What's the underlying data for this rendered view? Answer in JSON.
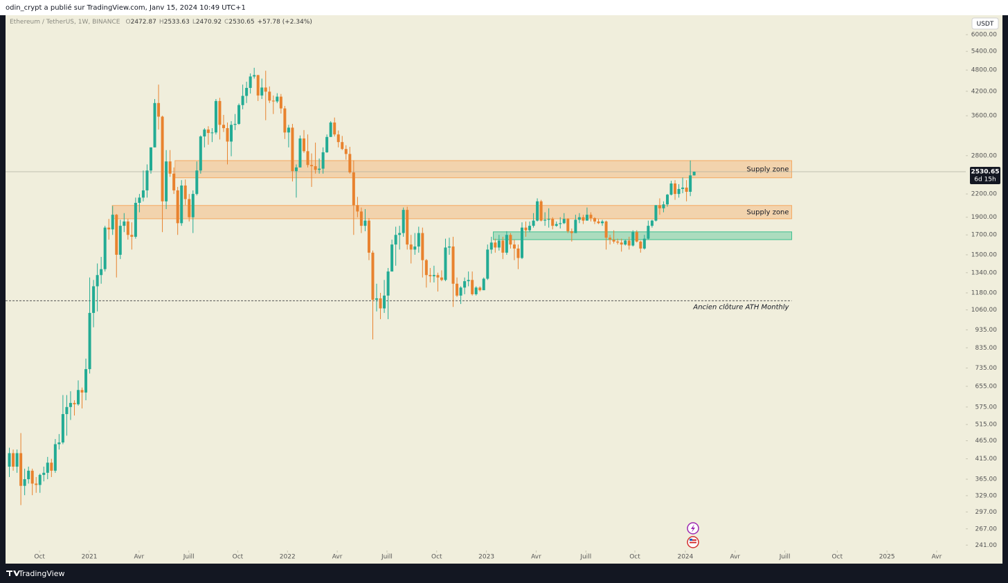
{
  "header": "odin_crypt a publié sur TradingView.com, Janv 15, 2024 10:49 UTC+1",
  "brand": "TradingView",
  "chart_data": {
    "type": "candlestick",
    "symbol": "Ethereum / TetherUS, 1W, BINANCE",
    "ohlc_prefixes": [
      "O",
      "H",
      "L",
      "C"
    ],
    "change": "+57.78 (+2.34%)",
    "countdown": "6d 15h",
    "currency": "USDT",
    "log": true,
    "colors": {
      "up": "#22ab94",
      "down": "#e8822e"
    },
    "xlim": [
      -1,
      250
    ],
    "ylim": [
      233,
      6780
    ],
    "xticks": [
      {
        "value": 7.9,
        "label": "Oct"
      },
      {
        "value": 20.9,
        "label": "2021"
      },
      {
        "value": 33.9,
        "label": "Avr"
      },
      {
        "value": 46.9,
        "label": "Juill"
      },
      {
        "value": 59.7,
        "label": "Oct"
      },
      {
        "value": 72.7,
        "label": "2022"
      },
      {
        "value": 85.7,
        "label": "Avr"
      },
      {
        "value": 98.7,
        "label": "Juill"
      },
      {
        "value": 111.7,
        "label": "Oct"
      },
      {
        "value": 124.7,
        "label": "2023"
      },
      {
        "value": 137.7,
        "label": "Avr"
      },
      {
        "value": 150.7,
        "label": "Juill"
      },
      {
        "value": 163.5,
        "label": "Oct"
      },
      {
        "value": 176.7,
        "label": "2024"
      },
      {
        "value": 189.7,
        "label": "Avr"
      },
      {
        "value": 202.7,
        "label": "Juill"
      },
      {
        "value": 216.4,
        "label": "Oct"
      },
      {
        "value": 229.4,
        "label": "2025"
      },
      {
        "value": 242.4,
        "label": "Avr"
      }
    ],
    "yticks": [
      {
        "value": 6000,
        "label": "6000.00"
      },
      {
        "value": 5400,
        "label": "5400.00"
      },
      {
        "value": 4800,
        "label": "4800.00"
      },
      {
        "value": 4200,
        "label": "4200.00"
      },
      {
        "value": 3600,
        "label": "3600.00"
      },
      {
        "value": 2800,
        "label": "2800.00"
      },
      {
        "value": 2200,
        "label": "2200.00"
      },
      {
        "value": 1900,
        "label": "1900.00"
      },
      {
        "value": 1700,
        "label": "1700.00"
      },
      {
        "value": 1500,
        "label": "1500.00"
      },
      {
        "value": 1340,
        "label": "1340.00"
      },
      {
        "value": 1180,
        "label": "1180.00"
      },
      {
        "value": 1060,
        "label": "1060.00"
      },
      {
        "value": 935,
        "label": "935.00"
      },
      {
        "value": 835,
        "label": "835.00"
      },
      {
        "value": 735,
        "label": "735.00"
      },
      {
        "value": 655,
        "label": "655.00"
      },
      {
        "value": 575,
        "label": "575.00"
      },
      {
        "value": 515,
        "label": "515.00"
      },
      {
        "value": 465,
        "label": "465.00"
      },
      {
        "value": 415,
        "label": "415.00"
      },
      {
        "value": 365,
        "label": "365.00"
      },
      {
        "value": 329,
        "label": "329.00"
      },
      {
        "value": 297,
        "label": "297.00"
      },
      {
        "value": 267,
        "label": "267.00"
      },
      {
        "value": 241,
        "label": "241.00"
      }
    ],
    "zones": [
      {
        "label": "Supply zone",
        "y": [
          2436,
          2714
        ],
        "x": [
          43.3,
          204.5
        ],
        "color": "#f5a860"
      },
      {
        "label": "Supply zone",
        "y": [
          1882,
          2046
        ],
        "x": [
          26.9,
          204.5
        ],
        "color": "#f5a860"
      },
      {
        "y": [
          1650,
          1733
        ],
        "x": [
          126.5,
          204.5
        ],
        "color": "#3cbf8e"
      }
    ],
    "hline": {
      "label": "Ancien clôture ATH Monthly",
      "level": 1123,
      "x": [
        -1,
        204.5
      ]
    },
    "candles": [
      [
        395,
        445,
        370,
        430
      ],
      [
        430,
        440,
        385,
        395
      ],
      [
        395,
        440,
        380,
        430
      ],
      [
        430,
        488,
        310,
        350
      ],
      [
        350,
        390,
        330,
        365
      ],
      [
        365,
        395,
        355,
        385
      ],
      [
        385,
        390,
        330,
        355
      ],
      [
        355,
        370,
        335,
        352
      ],
      [
        352,
        378,
        335,
        375
      ],
      [
        375,
        395,
        360,
        380
      ],
      [
        380,
        420,
        365,
        405
      ],
      [
        405,
        415,
        370,
        385
      ],
      [
        385,
        470,
        380,
        455
      ],
      [
        455,
        485,
        440,
        460
      ],
      [
        460,
        620,
        455,
        550
      ],
      [
        550,
        620,
        480,
        575
      ],
      [
        575,
        635,
        530,
        590
      ],
      [
        590,
        600,
        545,
        585
      ],
      [
        585,
        680,
        580,
        640
      ],
      [
        640,
        650,
        570,
        630
      ],
      [
        630,
        780,
        600,
        730
      ],
      [
        730,
        1300,
        710,
        1040
      ],
      [
        1040,
        1280,
        950,
        1230
      ],
      [
        1230,
        1420,
        1050,
        1320
      ],
      [
        1320,
        1480,
        1250,
        1370
      ],
      [
        1370,
        1800,
        1350,
        1780
      ],
      [
        1780,
        1880,
        1650,
        1760
      ],
      [
        1760,
        2040,
        1700,
        1930
      ],
      [
        1930,
        1940,
        1300,
        1500
      ],
      [
        1500,
        1870,
        1460,
        1800
      ],
      [
        1800,
        1950,
        1730,
        1850
      ],
      [
        1850,
        1880,
        1650,
        1700
      ],
      [
        1700,
        1840,
        1550,
        1680
      ],
      [
        1680,
        2150,
        1660,
        2080
      ],
      [
        2080,
        2200,
        1960,
        2150
      ],
      [
        2150,
        2550,
        2100,
        2250
      ],
      [
        2250,
        2650,
        2150,
        2550
      ],
      [
        2550,
        2950,
        2500,
        2950
      ],
      [
        2950,
        4000,
        2950,
        3900
      ],
      [
        3900,
        4380,
        3300,
        3580
      ],
      [
        3580,
        3600,
        1730,
        2100
      ],
      [
        2100,
        2900,
        2000,
        2700
      ],
      [
        2700,
        2900,
        2450,
        2500
      ],
      [
        2500,
        2600,
        2200,
        2250
      ],
      [
        2250,
        2300,
        1700,
        1830
      ],
      [
        1830,
        2400,
        1800,
        2320
      ],
      [
        2320,
        2410,
        2050,
        2130
      ],
      [
        2130,
        2200,
        1850,
        1900
      ],
      [
        1900,
        2250,
        1720,
        2200
      ],
      [
        2200,
        2700,
        2180,
        2550
      ],
      [
        2550,
        3180,
        2500,
        3160
      ],
      [
        3160,
        3330,
        2950,
        3300
      ],
      [
        3300,
        3370,
        3000,
        3230
      ],
      [
        3230,
        3330,
        3050,
        3240
      ],
      [
        3240,
        4000,
        3200,
        3950
      ],
      [
        3950,
        4030,
        3100,
        3400
      ],
      [
        3400,
        3620,
        3250,
        3330
      ],
      [
        3330,
        3450,
        2650,
        3060
      ],
      [
        3060,
        3480,
        2790,
        3400
      ],
      [
        3400,
        3640,
        3290,
        3420
      ],
      [
        3420,
        3890,
        3400,
        3850
      ],
      [
        3850,
        4380,
        3750,
        4080
      ],
      [
        4080,
        4460,
        3900,
        4290
      ],
      [
        4290,
        4700,
        4140,
        4610
      ],
      [
        4610,
        4870,
        4550,
        4650
      ],
      [
        4650,
        4660,
        3950,
        4090
      ],
      [
        4090,
        4550,
        4000,
        4300
      ],
      [
        4300,
        4780,
        3500,
        4190
      ],
      [
        4190,
        4330,
        3900,
        3960
      ],
      [
        3960,
        4090,
        3640,
        3940
      ],
      [
        3940,
        4150,
        3900,
        4060
      ],
      [
        4060,
        4130,
        3650,
        3770
      ],
      [
        3770,
        3830,
        3110,
        3240
      ],
      [
        3240,
        3400,
        2950,
        3340
      ],
      [
        3340,
        3420,
        2380,
        2540
      ],
      [
        2540,
        2650,
        2150,
        2600
      ],
      [
        2600,
        3180,
        2600,
        3120
      ],
      [
        3120,
        3290,
        2850,
        2880
      ],
      [
        2880,
        3200,
        2600,
        2640
      ],
      [
        2640,
        2840,
        2300,
        2620
      ],
      [
        2620,
        3040,
        2500,
        2560
      ],
      [
        2560,
        2750,
        2500,
        2580
      ],
      [
        2580,
        2950,
        2500,
        2860
      ],
      [
        2860,
        3200,
        2850,
        3150
      ],
      [
        3150,
        3480,
        3150,
        3450
      ],
      [
        3450,
        3560,
        3160,
        3200
      ],
      [
        3200,
        3280,
        2950,
        3050
      ],
      [
        3050,
        3170,
        2900,
        2920
      ],
      [
        2920,
        2990,
        2730,
        2830
      ],
      [
        2830,
        2960,
        2500,
        2520
      ],
      [
        2520,
        2720,
        1700,
        2050
      ],
      [
        2050,
        2160,
        1900,
        1970
      ],
      [
        1970,
        2020,
        1720,
        1800
      ],
      [
        1800,
        2000,
        1740,
        1860
      ],
      [
        1860,
        1890,
        1450,
        1520
      ],
      [
        1520,
        1540,
        880,
        1130
      ],
      [
        1130,
        1250,
        1050,
        1140
      ],
      [
        1140,
        1180,
        1000,
        1070
      ],
      [
        1070,
        1280,
        1040,
        1160
      ],
      [
        1160,
        1380,
        1000,
        1350
      ],
      [
        1350,
        1650,
        1350,
        1600
      ],
      [
        1600,
        1790,
        1400,
        1700
      ],
      [
        1700,
        1800,
        1550,
        1720
      ],
      [
        1720,
        2020,
        1680,
        1990
      ],
      [
        1990,
        2030,
        1550,
        1600
      ],
      [
        1600,
        1700,
        1420,
        1550
      ],
      [
        1550,
        1720,
        1500,
        1580
      ],
      [
        1580,
        1790,
        1520,
        1720
      ],
      [
        1720,
        1780,
        1300,
        1450
      ],
      [
        1450,
        1460,
        1220,
        1320
      ],
      [
        1320,
        1380,
        1260,
        1310
      ],
      [
        1310,
        1400,
        1260,
        1320
      ],
      [
        1320,
        1340,
        1190,
        1300
      ],
      [
        1300,
        1360,
        1270,
        1280
      ],
      [
        1280,
        1660,
        1270,
        1570
      ],
      [
        1570,
        1670,
        1500,
        1580
      ],
      [
        1580,
        1680,
        1080,
        1250
      ],
      [
        1250,
        1300,
        1150,
        1160
      ],
      [
        1160,
        1230,
        1100,
        1220
      ],
      [
        1220,
        1300,
        1170,
        1270
      ],
      [
        1270,
        1350,
        1230,
        1280
      ],
      [
        1280,
        1350,
        1160,
        1170
      ],
      [
        1170,
        1230,
        1160,
        1220
      ],
      [
        1220,
        1230,
        1190,
        1200
      ],
      [
        1200,
        1300,
        1200,
        1290
      ],
      [
        1290,
        1600,
        1280,
        1550
      ],
      [
        1550,
        1680,
        1510,
        1620
      ],
      [
        1620,
        1660,
        1520,
        1570
      ],
      [
        1570,
        1700,
        1540,
        1640
      ],
      [
        1640,
        1680,
        1460,
        1520
      ],
      [
        1520,
        1740,
        1500,
        1700
      ],
      [
        1700,
        1720,
        1560,
        1600
      ],
      [
        1600,
        1650,
        1450,
        1560
      ],
      [
        1560,
        1600,
        1370,
        1470
      ],
      [
        1470,
        1840,
        1460,
        1780
      ],
      [
        1780,
        1850,
        1680,
        1750
      ],
      [
        1750,
        1850,
        1730,
        1800
      ],
      [
        1800,
        1950,
        1780,
        1860
      ],
      [
        1860,
        2140,
        1850,
        2100
      ],
      [
        2100,
        2120,
        1850,
        1860
      ],
      [
        1860,
        1960,
        1800,
        1870
      ],
      [
        1870,
        2010,
        1780,
        1880
      ],
      [
        1880,
        1900,
        1760,
        1800
      ],
      [
        1800,
        1850,
        1790,
        1820
      ],
      [
        1820,
        1900,
        1770,
        1830
      ],
      [
        1830,
        1950,
        1820,
        1880
      ],
      [
        1880,
        1890,
        1720,
        1740
      ],
      [
        1740,
        1770,
        1630,
        1720
      ],
      [
        1720,
        1930,
        1720,
        1870
      ],
      [
        1870,
        1950,
        1830,
        1900
      ],
      [
        1900,
        1930,
        1820,
        1860
      ],
      [
        1860,
        2020,
        1860,
        1930
      ],
      [
        1930,
        1960,
        1850,
        1890
      ],
      [
        1890,
        1900,
        1820,
        1850
      ],
      [
        1850,
        1880,
        1820,
        1830
      ],
      [
        1830,
        1870,
        1800,
        1850
      ],
      [
        1850,
        1860,
        1550,
        1670
      ],
      [
        1670,
        1700,
        1600,
        1650
      ],
      [
        1650,
        1750,
        1610,
        1630
      ],
      [
        1630,
        1660,
        1600,
        1620
      ],
      [
        1620,
        1660,
        1530,
        1600
      ],
      [
        1600,
        1650,
        1590,
        1640
      ],
      [
        1640,
        1680,
        1550,
        1590
      ],
      [
        1590,
        1750,
        1580,
        1730
      ],
      [
        1730,
        1750,
        1620,
        1630
      ],
      [
        1630,
        1640,
        1520,
        1560
      ],
      [
        1560,
        1700,
        1550,
        1660
      ],
      [
        1660,
        1860,
        1650,
        1800
      ],
      [
        1800,
        1870,
        1780,
        1860
      ],
      [
        1860,
        2050,
        1850,
        2050
      ],
      [
        2050,
        2140,
        1930,
        2010
      ],
      [
        2010,
        2100,
        1960,
        2060
      ],
      [
        2060,
        2200,
        2030,
        2190
      ],
      [
        2190,
        2390,
        2180,
        2350
      ],
      [
        2350,
        2400,
        2120,
        2200
      ],
      [
        2200,
        2340,
        2150,
        2270
      ],
      [
        2270,
        2440,
        2210,
        2290
      ],
      [
        2290,
        2400,
        2100,
        2230
      ],
      [
        2230,
        2717,
        2170,
        2472.87
      ],
      [
        2472.87,
        2533.63,
        2470.92,
        2530.65
      ]
    ]
  }
}
